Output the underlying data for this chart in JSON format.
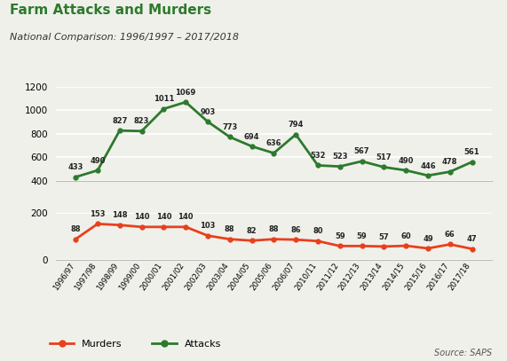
{
  "title": "Farm Attacks and Murders",
  "subtitle": "National Comparison: 1996/1997 – 2017/2018",
  "source": "Source: SAPS",
  "labels": [
    "1996/97",
    "1997/98",
    "1998/99",
    "1999/00",
    "2000/01",
    "2001/02",
    "2002/03",
    "2003/04",
    "2004/05",
    "2005/06",
    "2006/07",
    "2010/11",
    "2011/12",
    "2012/13",
    "2013/14",
    "2014/15",
    "2015/16",
    "2016/17",
    "2017/18"
  ],
  "attacks": [
    433,
    490,
    827,
    823,
    1011,
    1069,
    903,
    773,
    694,
    636,
    794,
    532,
    523,
    567,
    517,
    490,
    446,
    478,
    561
  ],
  "murders": [
    88,
    153,
    148,
    140,
    140,
    140,
    103,
    88,
    82,
    88,
    86,
    80,
    59,
    59,
    57,
    60,
    49,
    66,
    47
  ],
  "attacks_color": "#2d7a2d",
  "murders_color": "#e8401c",
  "title_color": "#2d7a2d",
  "background_color": "#f0f0eb",
  "upper_ylim": [
    400,
    1200
  ],
  "upper_yticks": [
    400,
    600,
    800,
    1000,
    1200
  ],
  "lower_ylim": [
    0,
    200
  ],
  "lower_yticks": [
    0,
    200
  ]
}
